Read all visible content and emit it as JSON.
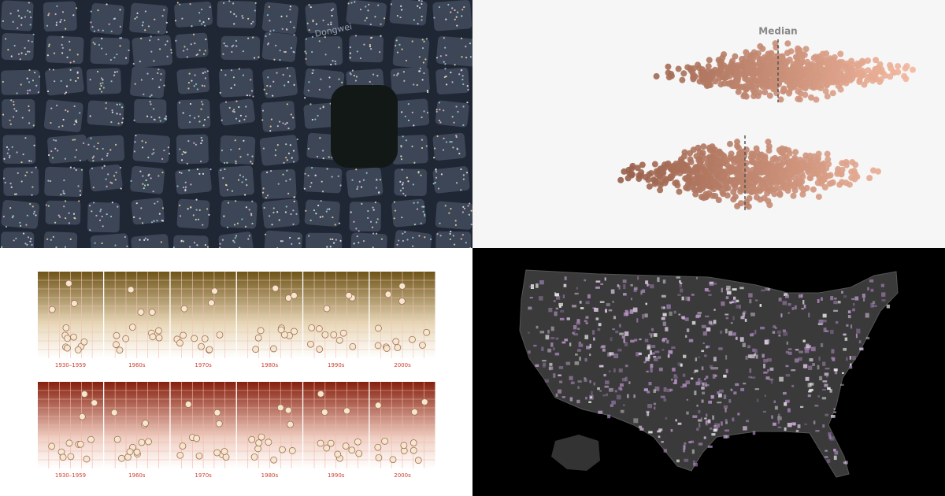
{
  "map_panel": {
    "street_label": "Dongwei"
  },
  "beeswarm_panel": {
    "annotation": "Median"
  },
  "decade_grids": {
    "labels": [
      "1930–1959",
      "1960s",
      "1970s",
      "1980s",
      "1990s",
      "2000s"
    ]
  }
}
